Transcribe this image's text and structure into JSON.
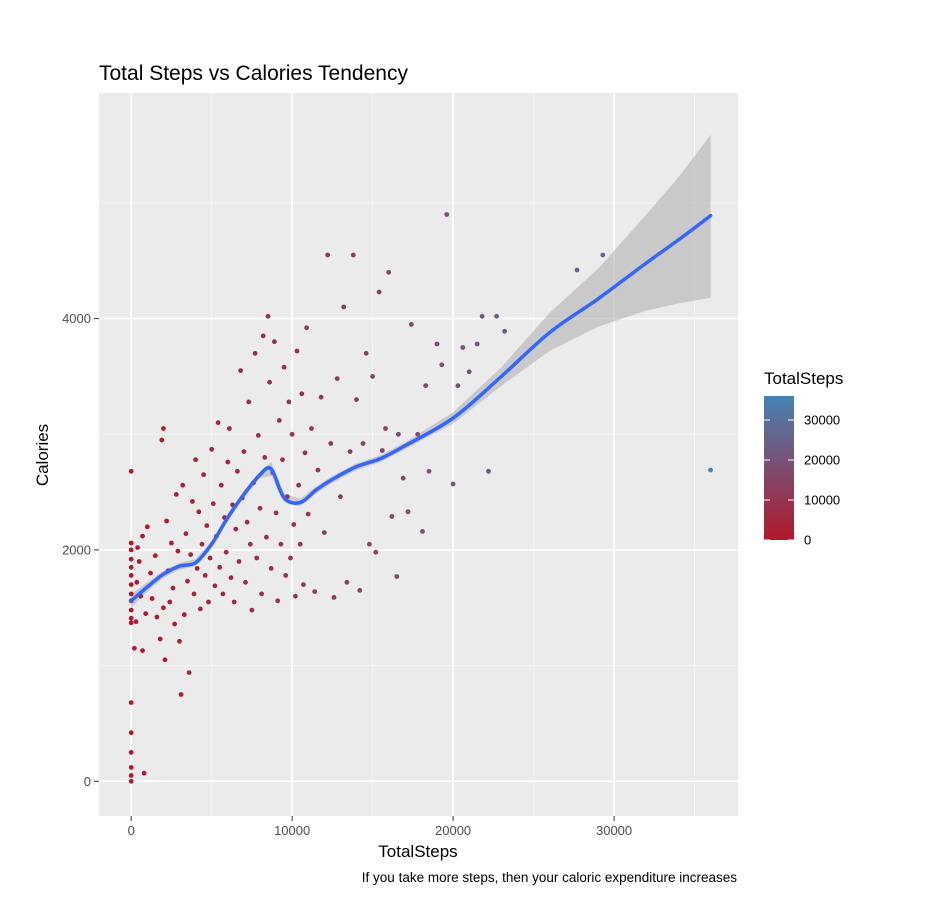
{
  "chart_data": {
    "type": "scatter",
    "title": "Total Steps vs Calories Tendency",
    "xlabel": "TotalSteps",
    "ylabel": "Calories",
    "caption": "If you take more steps, then your caloric expenditure increases",
    "xlim": [
      -2000,
      37700
    ],
    "ylim": [
      -300,
      5950
    ],
    "x_ticks": [
      0,
      10000,
      20000,
      30000
    ],
    "x_tick_labels": [
      "0",
      "10000",
      "20000",
      "30000"
    ],
    "y_ticks": [
      0,
      2000,
      4000
    ],
    "y_tick_labels": [
      "0",
      "2000",
      "4000"
    ],
    "grid": true,
    "legend": {
      "title": "TotalSteps",
      "position": "right",
      "type": "colorbar",
      "range": [
        0,
        36000
      ],
      "breaks": [
        0,
        10000,
        20000,
        30000
      ],
      "break_labels": [
        "0",
        "10000",
        "20000",
        "30000"
      ]
    },
    "color_scale": {
      "low": "#b2182b",
      "high": "#4682b4",
      "mapped_variable": "TotalSteps"
    },
    "smooth": {
      "method": "loess",
      "color": "#3366ff",
      "ribbon_color": "#b3b3b3",
      "x": [
        0,
        1000,
        2000,
        3000,
        4000,
        5000,
        6000,
        7000,
        8000,
        8700,
        9500,
        10500,
        11500,
        12500,
        14000,
        15500,
        17000,
        20000,
        23000,
        26000,
        29000,
        32000,
        34000,
        36000
      ],
      "y": [
        1560,
        1680,
        1790,
        1860,
        1890,
        2050,
        2280,
        2480,
        2650,
        2700,
        2450,
        2410,
        2520,
        2610,
        2720,
        2790,
        2900,
        3140,
        3500,
        3880,
        4170,
        4480,
        4680,
        4890
      ],
      "lower": [
        1500,
        1640,
        1760,
        1830,
        1860,
        2020,
        2250,
        2450,
        2620,
        2640,
        2410,
        2380,
        2490,
        2580,
        2690,
        2760,
        2870,
        3090,
        3420,
        3720,
        3930,
        4070,
        4130,
        4180
      ],
      "upper": [
        1620,
        1720,
        1820,
        1890,
        1920,
        2080,
        2310,
        2510,
        2680,
        2760,
        2490,
        2440,
        2550,
        2640,
        2750,
        2820,
        2930,
        3190,
        3580,
        4050,
        4430,
        4900,
        5220,
        5590
      ]
    },
    "points": [
      [
        0,
        0
      ],
      [
        0,
        50
      ],
      [
        0,
        120
      ],
      [
        0,
        250
      ],
      [
        0,
        420
      ],
      [
        0,
        680
      ],
      [
        0,
        1370
      ],
      [
        0,
        1410
      ],
      [
        0,
        1480
      ],
      [
        0,
        1560
      ],
      [
        0,
        1620
      ],
      [
        0,
        1700
      ],
      [
        0,
        1780
      ],
      [
        0,
        1850
      ],
      [
        0,
        1920
      ],
      [
        0,
        2000
      ],
      [
        0,
        2060
      ],
      [
        0,
        2680
      ],
      [
        200,
        1150
      ],
      [
        300,
        1380
      ],
      [
        350,
        1720
      ],
      [
        400,
        2020
      ],
      [
        500,
        1900
      ],
      [
        600,
        1600
      ],
      [
        700,
        1130
      ],
      [
        700,
        2120
      ],
      [
        800,
        70
      ],
      [
        900,
        1450
      ],
      [
        1000,
        2200
      ],
      [
        1200,
        1800
      ],
      [
        1300,
        1580
      ],
      [
        1500,
        1950
      ],
      [
        1600,
        1420
      ],
      [
        1800,
        1230
      ],
      [
        1900,
        2950
      ],
      [
        2000,
        3050
      ],
      [
        2000,
        1500
      ],
      [
        2100,
        1050
      ],
      [
        2200,
        2250
      ],
      [
        2300,
        1820
      ],
      [
        2400,
        1550
      ],
      [
        2500,
        2060
      ],
      [
        2600,
        1670
      ],
      [
        2700,
        1360
      ],
      [
        2800,
        2480
      ],
      [
        2900,
        1990
      ],
      [
        3000,
        1210
      ],
      [
        3100,
        750
      ],
      [
        3200,
        2560
      ],
      [
        3300,
        1440
      ],
      [
        3400,
        2140
      ],
      [
        3500,
        1730
      ],
      [
        3600,
        940
      ],
      [
        3700,
        1960
      ],
      [
        3800,
        2420
      ],
      [
        3900,
        1620
      ],
      [
        4000,
        2780
      ],
      [
        4100,
        1840
      ],
      [
        4200,
        2330
      ],
      [
        4300,
        1490
      ],
      [
        4400,
        2050
      ],
      [
        4500,
        2650
      ],
      [
        4600,
        1780
      ],
      [
        4700,
        2210
      ],
      [
        4800,
        1550
      ],
      [
        4900,
        1930
      ],
      [
        5000,
        2870
      ],
      [
        5100,
        2400
      ],
      [
        5200,
        1690
      ],
      [
        5300,
        2120
      ],
      [
        5400,
        3100
      ],
      [
        5500,
        1850
      ],
      [
        5600,
        2560
      ],
      [
        5700,
        1620
      ],
      [
        5800,
        2280
      ],
      [
        5900,
        1980
      ],
      [
        6000,
        2760
      ],
      [
        6100,
        3050
      ],
      [
        6200,
        1760
      ],
      [
        6300,
        2390
      ],
      [
        6400,
        1550
      ],
      [
        6500,
        2180
      ],
      [
        6600,
        2680
      ],
      [
        6700,
        1900
      ],
      [
        6800,
        3550
      ],
      [
        6900,
        2450
      ],
      [
        7000,
        2850
      ],
      [
        7100,
        1720
      ],
      [
        7200,
        2240
      ],
      [
        7300,
        3280
      ],
      [
        7400,
        2050
      ],
      [
        7500,
        1480
      ],
      [
        7600,
        2580
      ],
      [
        7700,
        3700
      ],
      [
        7800,
        1930
      ],
      [
        7900,
        2990
      ],
      [
        8000,
        2360
      ],
      [
        8100,
        1620
      ],
      [
        8200,
        3850
      ],
      [
        8300,
        2800
      ],
      [
        8400,
        2110
      ],
      [
        8500,
        4020
      ],
      [
        8600,
        3450
      ],
      [
        8700,
        1840
      ],
      [
        8800,
        2670
      ],
      [
        8900,
        3800
      ],
      [
        9000,
        2320
      ],
      [
        9100,
        1560
      ],
      [
        9200,
        3120
      ],
      [
        9300,
        2050
      ],
      [
        9400,
        2780
      ],
      [
        9500,
        3580
      ],
      [
        9600,
        1780
      ],
      [
        9700,
        2460
      ],
      [
        9800,
        3280
      ],
      [
        9900,
        1930
      ],
      [
        10000,
        3000
      ],
      [
        10100,
        2220
      ],
      [
        10200,
        1600
      ],
      [
        10300,
        3720
      ],
      [
        10400,
        2560
      ],
      [
        10500,
        2050
      ],
      [
        10600,
        3350
      ],
      [
        10700,
        1700
      ],
      [
        10800,
        2840
      ],
      [
        10900,
        3920
      ],
      [
        11000,
        2310
      ],
      [
        11200,
        3050
      ],
      [
        11400,
        1640
      ],
      [
        11600,
        2690
      ],
      [
        11800,
        3320
      ],
      [
        12000,
        2150
      ],
      [
        12200,
        4550
      ],
      [
        12400,
        2920
      ],
      [
        12600,
        1590
      ],
      [
        12800,
        3480
      ],
      [
        13000,
        2460
      ],
      [
        13200,
        4100
      ],
      [
        13400,
        1720
      ],
      [
        13600,
        2850
      ],
      [
        13800,
        4550
      ],
      [
        14000,
        3300
      ],
      [
        14200,
        1650
      ],
      [
        14400,
        2920
      ],
      [
        14600,
        3700
      ],
      [
        14800,
        2050
      ],
      [
        15000,
        3500
      ],
      [
        15200,
        1980
      ],
      [
        15400,
        4230
      ],
      [
        15600,
        2860
      ],
      [
        15800,
        3050
      ],
      [
        16000,
        4400
      ],
      [
        16200,
        2290
      ],
      [
        16500,
        1770
      ],
      [
        16600,
        3000
      ],
      [
        16900,
        2620
      ],
      [
        17200,
        2330
      ],
      [
        17400,
        3950
      ],
      [
        17800,
        3000
      ],
      [
        18100,
        2160
      ],
      [
        18300,
        3420
      ],
      [
        18500,
        2680
      ],
      [
        19000,
        3780
      ],
      [
        19300,
        3600
      ],
      [
        19600,
        4900
      ],
      [
        20000,
        2570
      ],
      [
        20300,
        3420
      ],
      [
        20600,
        3750
      ],
      [
        21000,
        3540
      ],
      [
        21500,
        3780
      ],
      [
        21800,
        4020
      ],
      [
        22200,
        2680
      ],
      [
        22700,
        4020
      ],
      [
        23200,
        3890
      ],
      [
        27700,
        4420
      ],
      [
        29300,
        4550
      ],
      [
        36000,
        2690
      ]
    ]
  }
}
